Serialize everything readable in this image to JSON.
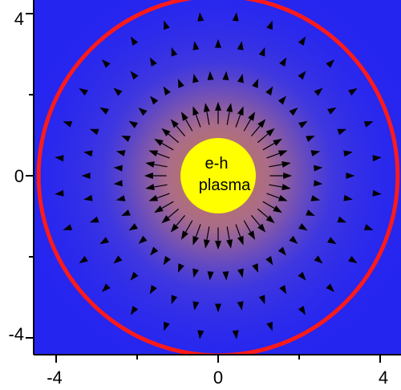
{
  "chart_data": {
    "type": "vector-field",
    "title": "",
    "xlabel": "",
    "ylabel": "",
    "xlim": [
      -4.5,
      4.5
    ],
    "ylim": [
      -4.5,
      4.5
    ],
    "x_ticks": [
      -4,
      0,
      4
    ],
    "y_ticks": [
      4,
      0,
      -4
    ],
    "x_tick_labels": [
      "-4",
      "0",
      "4"
    ],
    "y_tick_labels": [
      "4",
      "0",
      "-4"
    ],
    "background_color": "#2525f0",
    "center_glow_color": "#c77a4a",
    "plasma": {
      "label_line1": "e-h",
      "label_line2": "plasma",
      "center": [
        0,
        0
      ],
      "radius": 1.0,
      "color": "#ffff00"
    },
    "boundary_circle": {
      "center": [
        0,
        0
      ],
      "radius": 4.5,
      "color": "#ff1a1a"
    },
    "arrow_rings": [
      {
        "radius": 1.55,
        "count": 36,
        "length": 0.55,
        "direction": "outward"
      },
      {
        "radius": 2.45,
        "count": 40,
        "length": 0.28,
        "direction": "outward"
      },
      {
        "radius": 3.25,
        "count": 36,
        "length": 0.25,
        "direction": "outward"
      },
      {
        "radius": 3.95,
        "count": 28,
        "length": 0.22,
        "direction": "outward"
      }
    ],
    "arrow_color": "#000000"
  }
}
